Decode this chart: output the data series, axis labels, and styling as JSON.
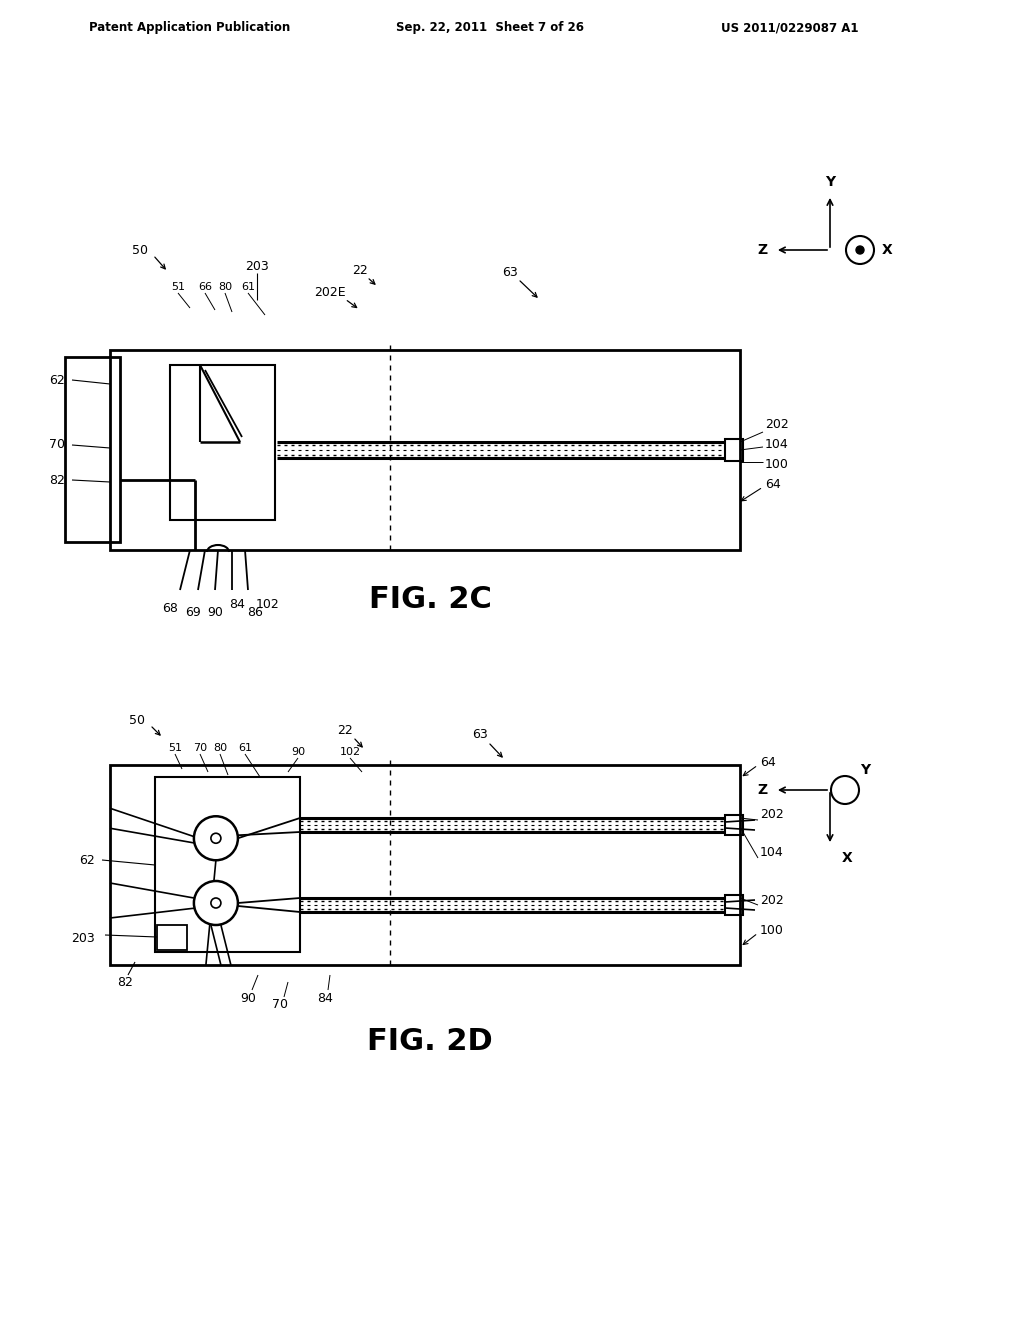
{
  "bg": "#ffffff",
  "header_left": "Patent Application Publication",
  "header_center": "Sep. 22, 2011  Sheet 7 of 26",
  "header_right": "US 2011/0229087 A1",
  "fig2c_label": "FIG. 2C",
  "fig2d_label": "FIG. 2D"
}
